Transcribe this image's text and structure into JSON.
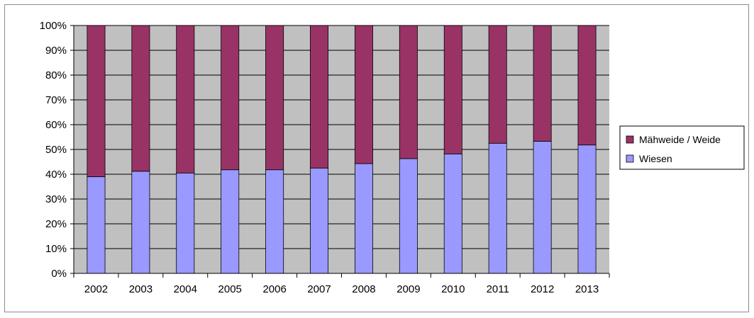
{
  "chart_data": {
    "type": "bar",
    "stacked": true,
    "percent": true,
    "categories": [
      "2002",
      "2003",
      "2004",
      "2005",
      "2006",
      "2007",
      "2008",
      "2009",
      "2010",
      "2011",
      "2012",
      "2013"
    ],
    "series": [
      {
        "name": "Wiesen",
        "color": "#9999ff",
        "values": [
          39,
          41.2,
          40.5,
          41.8,
          41.8,
          42.5,
          44.3,
          46.3,
          48.2,
          52.5,
          53.3,
          51.8
        ]
      },
      {
        "name": "Mähweide / Weide",
        "color": "#993366",
        "values": [
          61,
          58.8,
          59.5,
          58.2,
          58.2,
          57.5,
          55.7,
          53.7,
          51.8,
          47.5,
          46.7,
          48.2
        ]
      }
    ],
    "y_ticks": [
      "0%",
      "10%",
      "20%",
      "30%",
      "40%",
      "50%",
      "60%",
      "70%",
      "80%",
      "90%",
      "100%"
    ],
    "ylim": [
      0,
      100
    ],
    "grid": true,
    "plot_background": "#c0c0c0",
    "legend": {
      "position": "right",
      "entries": [
        "Mähweide / Weide",
        "Wiesen"
      ]
    }
  }
}
